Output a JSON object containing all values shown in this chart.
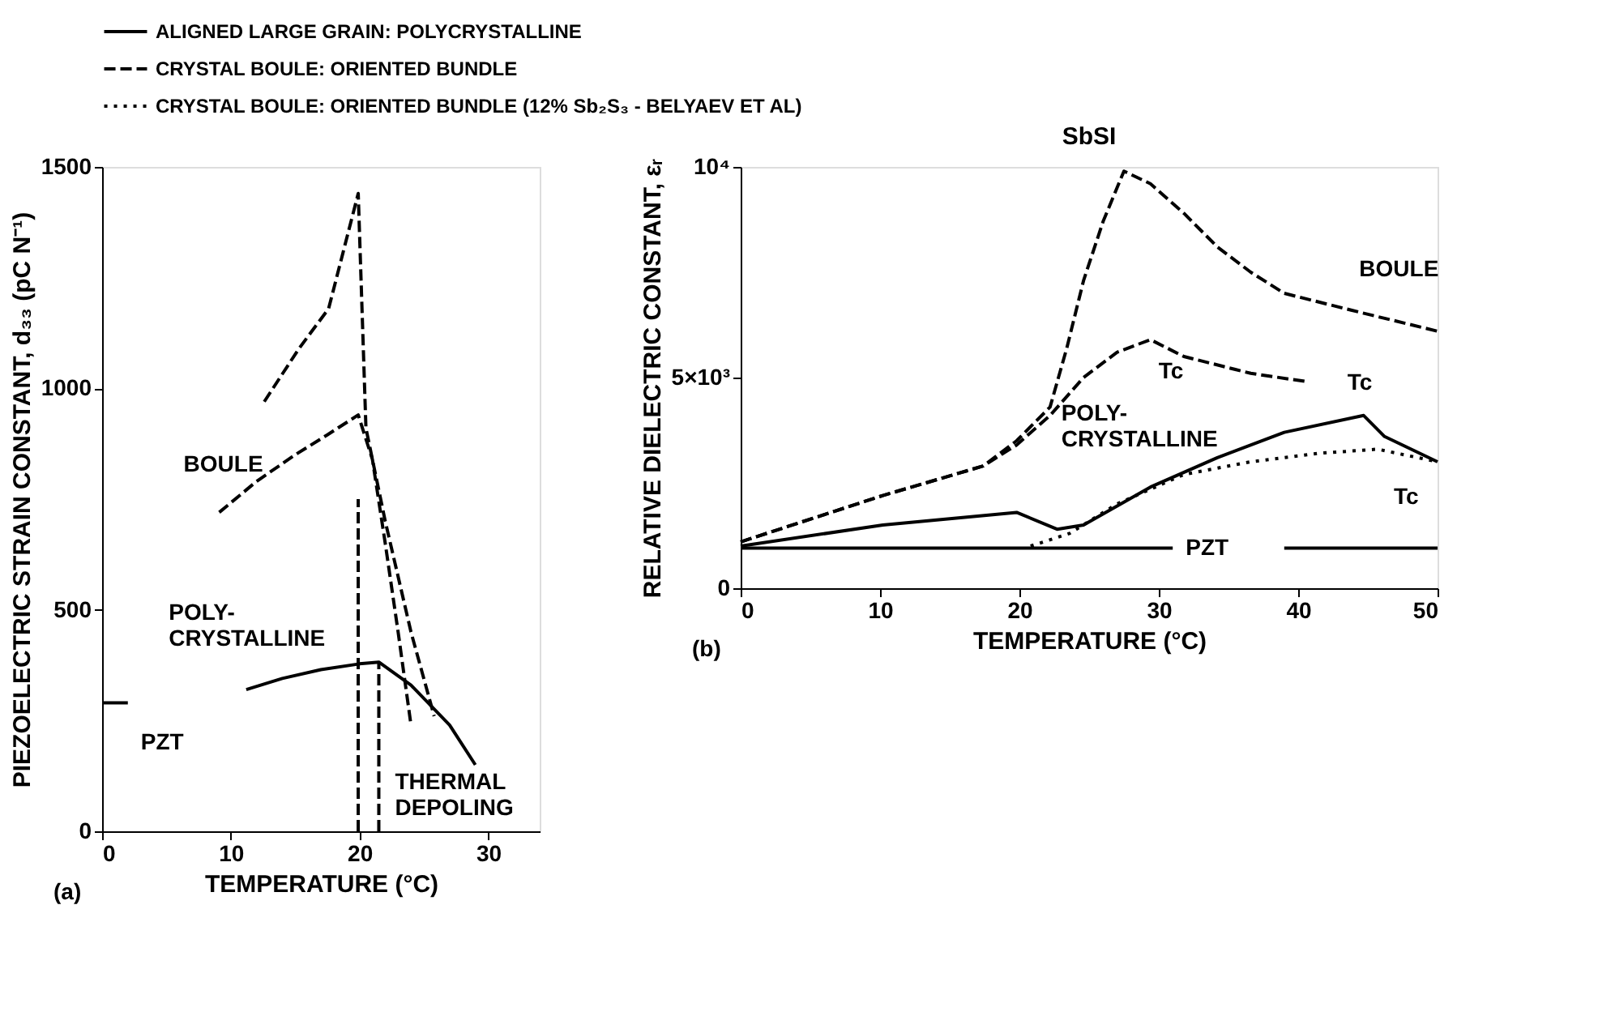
{
  "chart_data": [
    {
      "type": "line",
      "xlabel": "TEMPERATURE (°C)",
      "ylabel": "PIEZOELECTRIC STRAIN CONSTANT, d₃₃ (pC N⁻¹)",
      "xlim": [
        0,
        34
      ],
      "xticks": [
        0,
        10,
        20,
        30
      ],
      "ylim": [
        0,
        1500
      ],
      "yticks": [
        0,
        500,
        1000,
        1500
      ],
      "grid": false,
      "series": [
        {
          "color": "#000000",
          "line_style": "solid",
          "x": [
            11.2,
            14,
            17,
            20,
            21.5,
            24,
            27,
            29
          ],
          "values": [
            320,
            345,
            365,
            378,
            382,
            330,
            240,
            150
          ]
        },
        {
          "color": "#000000",
          "line_style": "dashed",
          "x": [
            9.1,
            12,
            15,
            17.5,
            19.9,
            21,
            22,
            23,
            24
          ],
          "values": [
            720,
            790,
            850,
            895,
            940,
            840,
            650,
            450,
            240
          ]
        },
        {
          "color": "#000000",
          "line_style": "dashed",
          "x": [
            12.6,
            15.3,
            17.6,
            19.9,
            20.5,
            22,
            24,
            25.8
          ],
          "values": [
            970,
            1090,
            1180,
            1440,
            910,
            700,
            450,
            260
          ]
        },
        {
          "color": "#000000",
          "line_style": "dashed",
          "x": [
            19.9,
            19.9
          ],
          "values": [
            0,
            750
          ]
        },
        {
          "color": "#000000",
          "line_style": "dashed",
          "x": [
            21.5,
            21.5
          ],
          "values": [
            0,
            380
          ]
        },
        {
          "color": "#000000",
          "line_style": "solid",
          "x": [
            0,
            2
          ],
          "values": [
            290,
            290
          ]
        }
      ],
      "annotations": [
        {
          "text": "PZT",
          "x": 2,
          "y": 290
        },
        {
          "text": "BOULE",
          "x": 12,
          "y": 790
        },
        {
          "text": "POLY-\nCRYSTALLINE",
          "x": 14,
          "y": 345
        },
        {
          "text": "THERMAL\nDEPOLING",
          "x": 21.5,
          "y": 0
        },
        "(a)"
      ]
    },
    {
      "type": "line",
      "title": "SbSI",
      "xlabel": "TEMPERATURE (°C)",
      "ylabel": "RELATIVE DIELECTRIC CONSTANT, εᵣ",
      "xlim": [
        0,
        50
      ],
      "xticks": [
        0,
        10,
        20,
        30,
        40,
        50
      ],
      "ylim": [
        0,
        10000
      ],
      "yticks": [
        0,
        {
          "value": 5000,
          "label": "5×10³"
        },
        {
          "value": 10000,
          "label": "10⁴"
        }
      ],
      "grid": false,
      "legend": "top",
      "series": [
        {
          "name": "ALIGNED LARGE GRAIN: POLYCRYSTALLINE",
          "color": "#000000",
          "line_style": "solid",
          "x": [
            0,
            10.2,
            19.8,
            22.7,
            24.6,
            29.4,
            34.2,
            39,
            44.7,
            46.2,
            50
          ],
          "values": [
            1000,
            1500,
            1800,
            1400,
            1500,
            2400,
            3100,
            3700,
            4100,
            3600,
            3000
          ]
        },
        {
          "name": "CRYSTAL BOULE: ORIENTED BUNDLE",
          "color": "#000000",
          "line_style": "dashed",
          "x": [
            0,
            10.2,
            17.4,
            19.8,
            22.2,
            23.4,
            24.6,
            26,
            27.5,
            29.4,
            31.8,
            34.2,
            36.6,
            39,
            43.8,
            50
          ],
          "values": [
            1100,
            2200,
            2900,
            3500,
            4300,
            5700,
            7300,
            8700,
            9900,
            9600,
            8900,
            8100,
            7500,
            7000,
            6600,
            6100
          ]
        },
        {
          "color": "#000000",
          "line_style": "dashed",
          "x": [
            0,
            10.2,
            17.4,
            19.8,
            22.2,
            24.6,
            27,
            29.4,
            31.8,
            36.6,
            40.7
          ],
          "values": [
            1100,
            2200,
            2900,
            3400,
            4100,
            5000,
            5600,
            5900,
            5500,
            5100,
            4900
          ]
        },
        {
          "name": "CRYSTAL BOULE: ORIENTED BUNDLE (12% Sb₂S₃ - BELYAEV ET AL)",
          "color": "#000000",
          "line_style": "dotted",
          "x": [
            20.8,
            23.6,
            27,
            31.8,
            36.6,
            41.4,
            45.7,
            50
          ],
          "values": [
            1000,
            1300,
            2000,
            2700,
            3000,
            3200,
            3300,
            3000
          ]
        },
        {
          "color": "#000000",
          "line_style": "solid",
          "x": [
            0,
            31,
            35,
            39,
            50
          ],
          "values": [
            950,
            950,
            null,
            950,
            950
          ]
        }
      ],
      "annotations": [
        {
          "text": "PZT",
          "x": 31,
          "y": 950
        },
        {
          "text": "BOULE",
          "x": 43.8,
          "y": 6600
        },
        {
          "text": "POLY-\nCRYSTALLINE",
          "x": 29.4,
          "y": 2400
        },
        {
          "text": "Tc",
          "x": 29.4,
          "y": 5900
        },
        {
          "text": "Tc",
          "x": 44.7,
          "y": 4100
        },
        {
          "text": "Tc",
          "x": 45.7,
          "y": 3300
        },
        "(b)"
      ]
    }
  ]
}
